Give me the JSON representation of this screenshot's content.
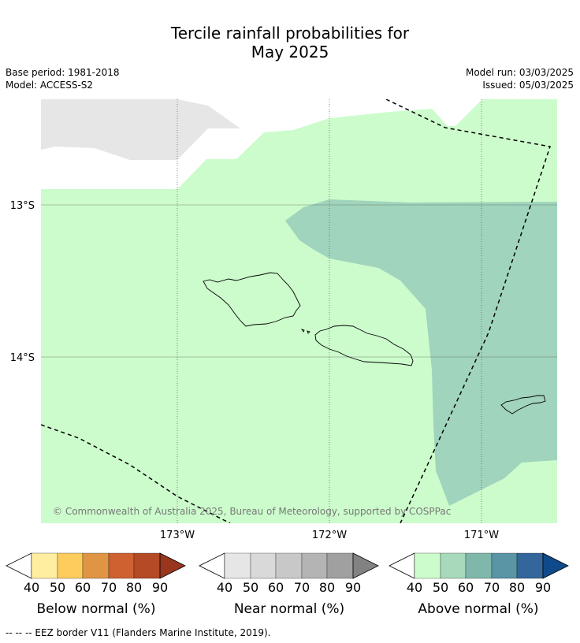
{
  "title_line1": "Tercile rainfall probabilities for",
  "title_line2": "May 2025",
  "meta_left": [
    "Base period: 1981-2018",
    "Model: ACCESS-S2"
  ],
  "meta_right": [
    "Model run: 03/03/2025",
    "Issued: 05/03/2025"
  ],
  "map": {
    "lat_labels": [
      "13°S",
      "14°S"
    ],
    "lon_labels": [
      "173°W",
      "172°W",
      "171°W"
    ],
    "copyright": "© Commonwealth of Australia 2025, Bureau of Meteorology, supported by COSPPac",
    "colors": {
      "above_40_50": "#ccfccc",
      "above_50_60": "#a0d4bc",
      "near_missing": "#e6e6e6"
    }
  },
  "colorbars": [
    {
      "caption": "Below normal (%)",
      "ticks": [
        "40",
        "50",
        "60",
        "70",
        "80",
        "90"
      ],
      "colors": [
        "#ffeda0",
        "#fecc5c",
        "#e09545",
        "#cf6131",
        "#b44a26",
        "#98361e"
      ]
    },
    {
      "caption": "Near normal (%)",
      "ticks": [
        "40",
        "50",
        "60",
        "70",
        "80",
        "90"
      ],
      "colors": [
        "#e6e6e6",
        "#d9d9d9",
        "#c8c8c8",
        "#b4b4b4",
        "#a0a0a0",
        "#828282"
      ]
    },
    {
      "caption": "Above normal (%)",
      "ticks": [
        "40",
        "50",
        "60",
        "70",
        "80",
        "90"
      ],
      "colors": [
        "#ccfccc",
        "#a6dabb",
        "#7fb7ab",
        "#5995a5",
        "#33669a",
        "#104a8a"
      ]
    }
  ],
  "footnote": "--  --  -- EEZ border V11 (Flanders Marine Institute, 2019)."
}
